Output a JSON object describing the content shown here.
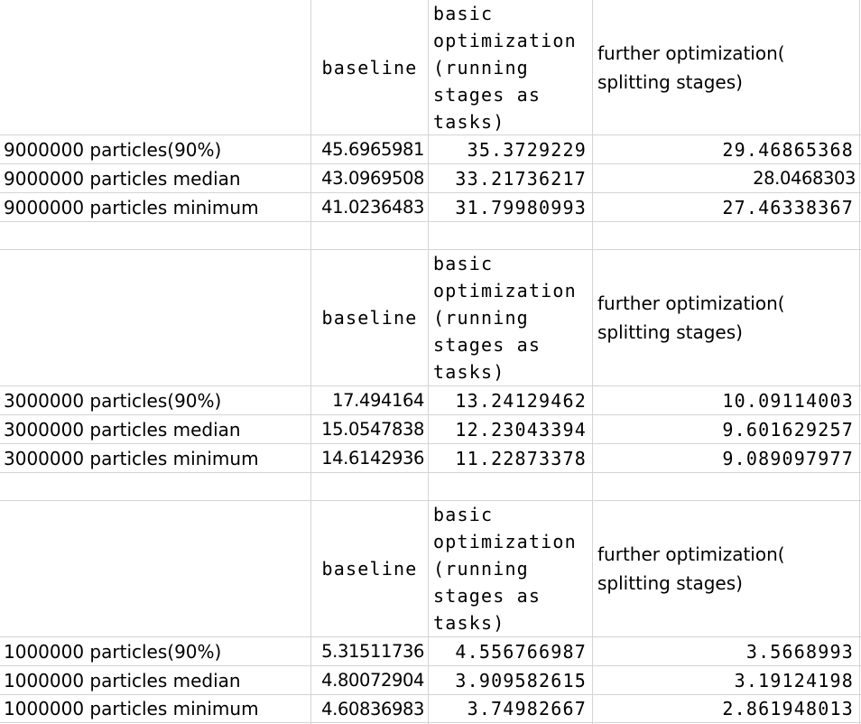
{
  "headers": {
    "baseline": "baseline",
    "basic": "basic\noptimization\n(running\nstages as\ntasks)",
    "further": "further optimization( splitting stages)"
  },
  "block1": {
    "rows": [
      {
        "label": "9000000 particles(90%)",
        "baseline": "45.6965981",
        "basic": "35.3729229",
        "further": "29.46865368"
      },
      {
        "label": "9000000 particles median",
        "baseline": "43.0969508",
        "basic": "33.21736217",
        "further": "28.0468303"
      },
      {
        "label": "9000000 particles minimum",
        "baseline": "41.0236483",
        "basic": "31.79980993",
        "further": "27.46338367"
      }
    ]
  },
  "block2": {
    "rows": [
      {
        "label": "3000000 particles(90%)",
        "baseline": "17.494164",
        "basic": "13.24129462",
        "further": "10.09114003"
      },
      {
        "label": "3000000 particles median",
        "baseline": "15.0547838",
        "basic": "12.23043394",
        "further": "9.601629257"
      },
      {
        "label": "3000000 particles minimum",
        "baseline": "14.6142936",
        "basic": "11.22873378",
        "further": "9.089097977"
      }
    ]
  },
  "block3": {
    "rows": [
      {
        "label": "1000000 particles(90%)",
        "baseline": "5.31511736",
        "basic": "4.556766987",
        "further": "3.5668993"
      },
      {
        "label": "1000000 particles median",
        "baseline": "4.80072904",
        "basic": "3.909582615",
        "further": "3.19124198"
      },
      {
        "label": "1000000 particles minimum",
        "baseline": "4.60836983",
        "basic": "3.74982667",
        "further": "2.861948013"
      }
    ]
  }
}
